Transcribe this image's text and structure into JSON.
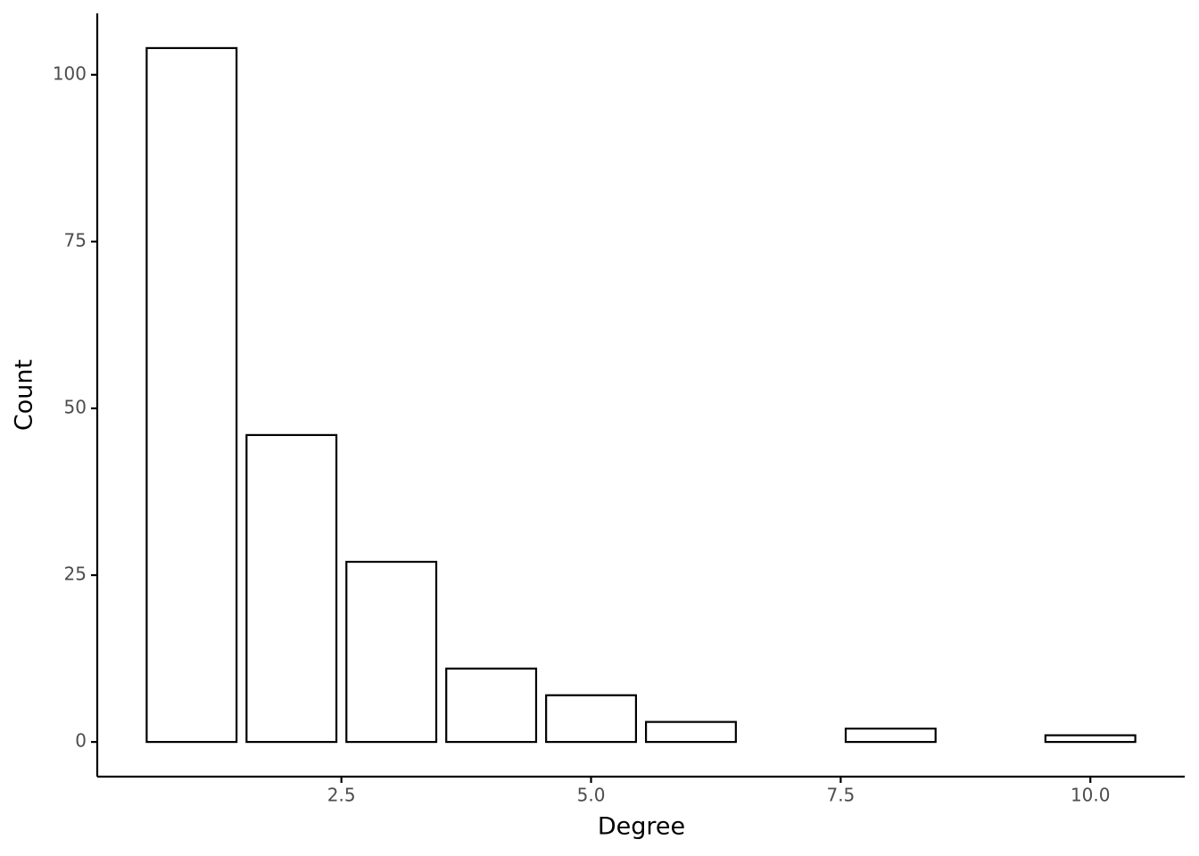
{
  "chart_data": {
    "type": "bar",
    "x": [
      1,
      2,
      3,
      4,
      5,
      6,
      8,
      10
    ],
    "values": [
      104,
      46,
      27,
      11,
      7,
      3,
      2,
      1
    ],
    "color": "#ffffff",
    "edge_color": "#000000",
    "x_label": "Degree",
    "y_label": "Count",
    "xlim": [
      0.055,
      10.945
    ],
    "xticks": [
      2.5,
      {
        "value": 5,
        "label": "5.0"
      },
      7.5,
      {
        "value": 10,
        "label": "10.0"
      }
    ],
    "ylim": [
      -5.2,
      109.2
    ],
    "yticks": [
      0,
      25,
      50,
      75,
      100
    ],
    "grid": false
  }
}
